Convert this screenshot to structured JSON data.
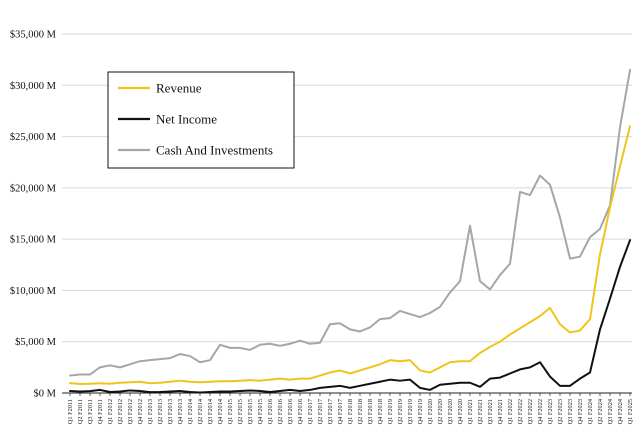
{
  "chart_data": {
    "type": "line",
    "title": "",
    "xlabel": "",
    "ylabel": "",
    "ylim": [
      0,
      35000
    ],
    "y_ticks": [
      0,
      5000,
      10000,
      15000,
      20000,
      25000,
      30000,
      35000
    ],
    "y_tick_labels": [
      "$0 M",
      "$5,000 M",
      "$10,000 M",
      "$15,000 M",
      "$20,000 M",
      "$25,000 M",
      "$30,000 M",
      "$35,000 M"
    ],
    "grid": "horizontal",
    "legend_position": "top-left",
    "categories": [
      "Q1 F2011",
      "Q2 F2011",
      "Q3 F2011",
      "Q4 F2011",
      "Q1 F2012",
      "Q2 F2012",
      "Q3 F2012",
      "Q4 F2012",
      "Q1 F2013",
      "Q2 F2013",
      "Q3 F2013",
      "Q4 F2013",
      "Q1 F2014",
      "Q2 F2014",
      "Q3 F2014",
      "Q4 F2014",
      "Q1 F2015",
      "Q2 F2015",
      "Q3 F2015",
      "Q4 F2015",
      "Q1 F2016",
      "Q2 F2016",
      "Q3 F2016",
      "Q4 F2016",
      "Q1 F2017",
      "Q2 F2017",
      "Q3 F2017",
      "Q4 F2017",
      "Q1 F2018",
      "Q2 F2018",
      "Q3 F2018",
      "Q4 F2018",
      "Q1 F2019",
      "Q2 F2019",
      "Q3 F2019",
      "Q4 F2019",
      "Q1 F2020",
      "Q2 F2020",
      "Q3 F2020",
      "Q4 F2020",
      "Q1 F2021",
      "Q2 F2021",
      "Q3 F2021",
      "Q4 F2021",
      "Q1 F2022",
      "Q2 F2022",
      "Q3 F2022",
      "Q4 F2022",
      "Q1 F2023",
      "Q2 F2023",
      "Q3 F2023",
      "Q4 F2023",
      "Q1 F2024",
      "Q2 F2024",
      "Q3 F2024",
      "Q4 F2024",
      "Q1 F2025"
    ],
    "series": [
      {
        "name": "Revenue",
        "color": "#f0c419",
        "values": [
          962,
          880,
          900,
          950,
          900,
          1000,
          1050,
          1100,
          950,
          1000,
          1100,
          1200,
          1100,
          1050,
          1100,
          1150,
          1150,
          1200,
          1250,
          1200,
          1300,
          1400,
          1300,
          1400,
          1400,
          1700,
          2000,
          2200,
          1900,
          2200,
          2500,
          2800,
          3200,
          3100,
          3200,
          2200,
          2000,
          2500,
          3000,
          3100,
          3100,
          3900,
          4500,
          5000,
          5700,
          6300,
          6900,
          7500,
          8300,
          6700,
          5900,
          6100,
          7200,
          13500,
          18100,
          22100,
          26000
        ]
      },
      {
        "name": "Net Income",
        "color": "#111111",
        "values": [
          190,
          150,
          180,
          300,
          100,
          150,
          250,
          200,
          80,
          100,
          150,
          200,
          100,
          50,
          100,
          150,
          150,
          200,
          250,
          200,
          100,
          200,
          300,
          200,
          300,
          500,
          600,
          700,
          500,
          700,
          900,
          1100,
          1300,
          1200,
          1300,
          500,
          300,
          800,
          900,
          1000,
          1000,
          600,
          1400,
          1500,
          1900,
          2300,
          2500,
          3000,
          1600,
          700,
          700,
          1400,
          2000,
          6200,
          9200,
          12300,
          14900
        ]
      },
      {
        "name": "Cash And Investments",
        "color": "#a6a6a6",
        "values": [
          1700,
          1800,
          1800,
          2500,
          2700,
          2500,
          2800,
          3100,
          3200,
          3300,
          3400,
          3800,
          3600,
          3000,
          3200,
          4700,
          4400,
          4400,
          4200,
          4700,
          4800,
          4600,
          4800,
          5100,
          4800,
          4900,
          6700,
          6800,
          6200,
          6000,
          6400,
          7200,
          7300,
          8000,
          7700,
          7400,
          7800,
          8400,
          9800,
          10900,
          16300,
          10900,
          10100,
          11500,
          12600,
          19600,
          19300,
          21200,
          20300,
          17100,
          13100,
          13300,
          15200,
          16000,
          18300,
          25900,
          31500
        ]
      }
    ]
  }
}
